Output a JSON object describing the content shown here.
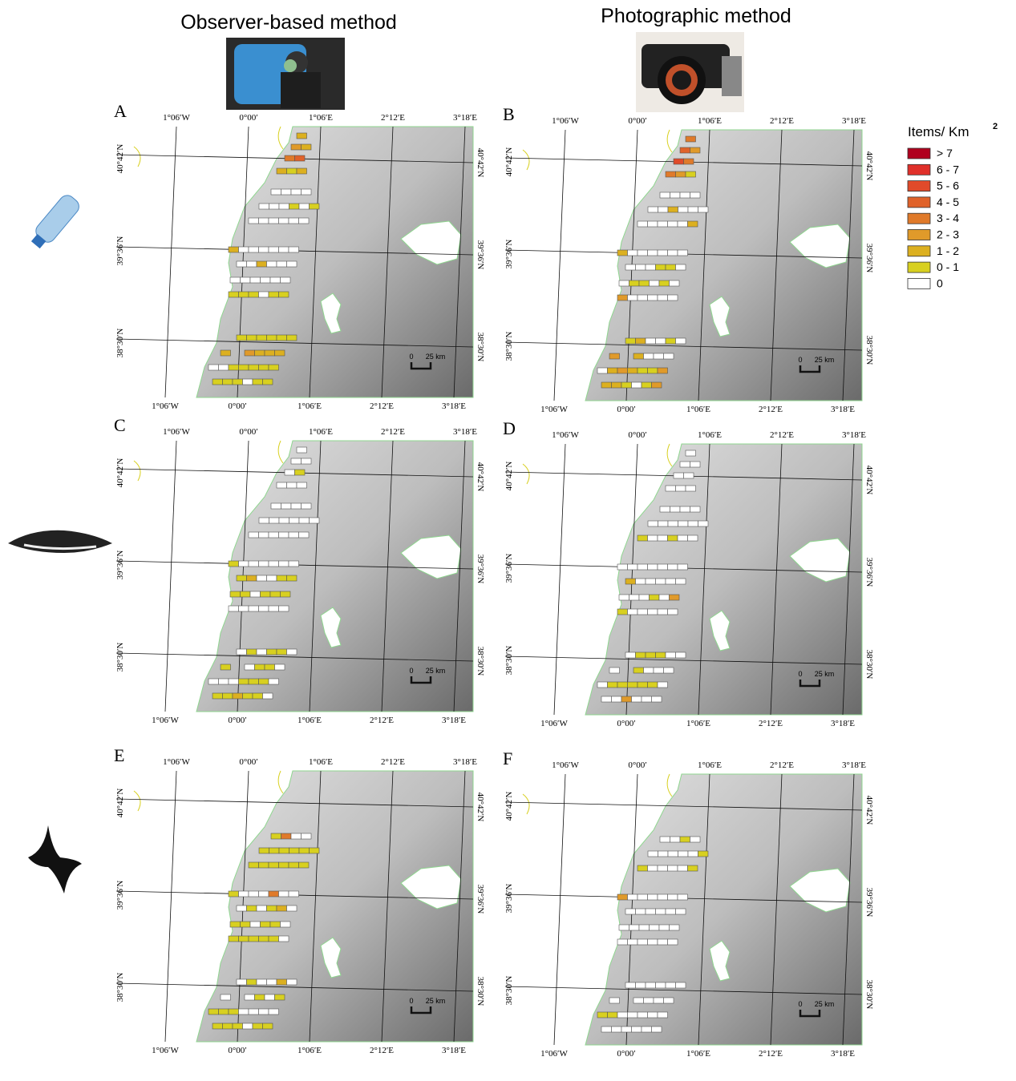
{
  "columns": [
    "Observer-based method",
    "Photographic method"
  ],
  "lon_labels": [
    "1°06′W",
    "0°00′",
    "1°06′E",
    "2°12′E",
    "3°18′E"
  ],
  "lat_labels": [
    "40°42′N",
    "39°36′N",
    "38°30′N"
  ],
  "scale_labels": [
    "0",
    "25 km"
  ],
  "legend": {
    "title": "Items/ Km",
    "title_sup": "2",
    "classes": [
      "> 7",
      "6 - 7",
      "5 - 6",
      "4 - 5",
      "3 - 4",
      "2 - 3",
      "1 - 2",
      "0 - 1",
      "0"
    ],
    "colors": [
      "#b0001e",
      "#e0302a",
      "#e04a2a",
      "#e0622a",
      "#e07a2a",
      "#e09a2a",
      "#dcb020",
      "#d8d020",
      "#ffffff"
    ]
  },
  "panels": [
    {
      "letter": "A",
      "cells": [
        [
          6
        ],
        [
          5,
          6
        ],
        [
          4,
          3
        ],
        [
          6,
          7,
          6
        ],
        [
          8,
          8,
          8,
          8
        ],
        [
          8,
          8,
          8,
          7,
          8,
          7
        ],
        [
          8,
          8,
          8,
          8,
          8,
          8
        ],
        [
          6,
          8,
          8,
          8,
          8,
          8,
          8
        ],
        [
          8,
          8,
          6,
          8,
          8,
          8
        ],
        [
          8,
          8,
          8,
          8,
          8,
          8
        ],
        [
          7,
          7,
          7,
          8,
          7,
          7
        ],
        [
          7,
          7,
          7,
          7,
          7,
          7
        ],
        [
          6
        ],
        [
          5,
          6,
          6,
          6
        ],
        [
          8,
          8,
          7,
          7,
          7,
          7,
          7
        ],
        [
          7,
          7,
          7,
          8,
          7,
          7
        ]
      ]
    },
    {
      "letter": "B",
      "cells": [
        [
          4
        ],
        [
          3,
          5
        ],
        [
          2,
          4
        ],
        [
          4,
          5,
          7
        ],
        [
          8,
          8,
          8,
          8
        ],
        [
          8,
          8,
          6,
          8,
          8,
          8
        ],
        [
          8,
          8,
          8,
          8,
          8,
          6
        ],
        [
          6,
          8,
          8,
          8,
          8,
          8,
          8
        ],
        [
          8,
          8,
          8,
          7,
          7,
          8
        ],
        [
          8,
          7,
          7,
          8,
          7,
          8
        ],
        [
          5,
          8,
          8,
          8,
          8,
          8
        ],
        [
          7,
          6,
          8,
          8,
          7,
          8
        ],
        [
          5
        ],
        [
          6,
          8,
          8,
          8
        ],
        [
          8,
          6,
          5,
          6,
          7,
          7,
          5
        ],
        [
          6,
          6,
          7,
          8,
          7,
          5
        ]
      ]
    },
    {
      "letter": "C",
      "cells": [
        [
          8
        ],
        [
          8,
          8
        ],
        [
          8,
          7
        ],
        [
          8,
          8,
          8
        ],
        [
          8,
          8,
          8,
          8
        ],
        [
          8,
          8,
          8,
          8,
          8,
          8
        ],
        [
          8,
          8,
          8,
          8,
          8,
          8
        ],
        [
          7,
          8,
          8,
          8,
          8,
          8,
          8
        ],
        [
          7,
          6,
          8,
          8,
          7,
          7
        ],
        [
          7,
          7,
          8,
          7,
          7,
          7
        ],
        [
          8,
          8,
          8,
          8,
          8,
          8
        ],
        [
          8,
          7,
          8,
          7,
          7,
          8
        ],
        [
          7
        ],
        [
          8,
          7,
          7,
          8
        ],
        [
          8,
          8,
          8,
          7,
          7,
          7,
          8
        ],
        [
          7,
          7,
          6,
          7,
          7,
          8
        ]
      ]
    },
    {
      "letter": "D",
      "cells": [
        [
          8
        ],
        [
          8,
          8
        ],
        [
          8,
          8
        ],
        [
          8,
          8,
          8
        ],
        [
          8,
          8,
          8,
          8
        ],
        [
          8,
          8,
          8,
          8,
          8,
          8
        ],
        [
          7,
          8,
          8,
          7,
          8,
          8
        ],
        [
          8,
          8,
          8,
          8,
          8,
          8,
          8
        ],
        [
          6,
          8,
          8,
          8,
          8,
          8
        ],
        [
          8,
          8,
          8,
          7,
          8,
          5
        ],
        [
          7,
          8,
          8,
          8,
          8,
          8
        ],
        [
          8,
          7,
          7,
          7,
          8,
          8
        ],
        [
          8
        ],
        [
          7,
          8,
          8,
          8
        ],
        [
          8,
          7,
          7,
          7,
          7,
          7,
          8
        ],
        [
          8,
          8,
          5,
          8,
          8,
          8
        ]
      ]
    },
    {
      "letter": "E",
      "cells": [
        [],
        [],
        [],
        [],
        [
          7,
          4,
          8,
          8
        ],
        [
          7,
          7,
          7,
          7,
          7,
          7
        ],
        [
          7,
          7,
          7,
          7,
          7,
          7
        ],
        [
          7,
          8,
          8,
          8,
          4,
          8,
          8
        ],
        [
          8,
          7,
          8,
          7,
          6,
          8
        ],
        [
          7,
          7,
          8,
          7,
          7,
          8
        ],
        [
          7,
          7,
          7,
          7,
          7,
          8
        ],
        [
          8,
          7,
          8,
          8,
          6,
          8
        ],
        [
          8
        ],
        [
          8,
          7,
          8,
          7
        ],
        [
          7,
          7,
          7,
          8,
          8,
          8,
          8
        ],
        [
          7,
          7,
          7,
          8,
          7,
          7
        ]
      ]
    },
    {
      "letter": "F",
      "cells": [
        [],
        [],
        [],
        [],
        [
          8,
          8,
          7,
          8
        ],
        [
          8,
          8,
          8,
          8,
          8,
          7
        ],
        [
          7,
          8,
          8,
          8,
          8,
          7
        ],
        [
          5,
          8,
          8,
          8,
          8,
          8,
          8
        ],
        [
          8,
          8,
          8,
          8,
          8,
          8
        ],
        [
          8,
          8,
          8,
          8,
          8,
          8
        ],
        [
          8,
          8,
          8,
          8,
          8,
          8
        ],
        [
          8,
          8,
          8,
          8,
          8,
          8
        ],
        [
          8
        ],
        [
          8,
          8,
          8,
          8
        ],
        [
          7,
          7,
          8,
          8,
          8,
          8,
          8
        ],
        [
          8,
          8,
          8,
          8,
          8,
          8
        ]
      ]
    }
  ]
}
